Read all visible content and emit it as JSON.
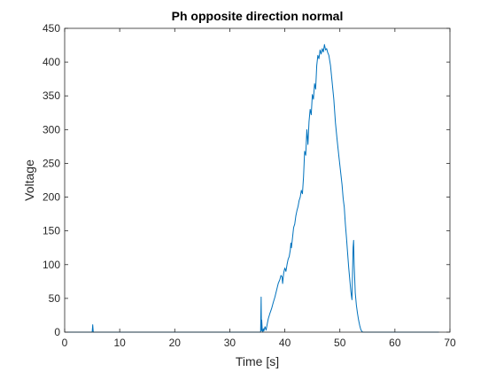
{
  "chart_data": {
    "type": "line",
    "title": "Ph opposite direction normal",
    "xlabel": "Time [s]",
    "ylabel": "Voltage",
    "xlim": [
      0,
      70
    ],
    "ylim": [
      0,
      450
    ],
    "xticks": [
      0,
      10,
      20,
      30,
      40,
      50,
      60,
      70
    ],
    "yticks": [
      0,
      50,
      100,
      150,
      200,
      250,
      300,
      350,
      400,
      450
    ],
    "grid": false,
    "box": true,
    "series": [
      {
        "color": "#0072BD",
        "x": [
          0,
          5.0,
          5.1,
          5.2,
          5.3,
          35.6,
          35.7,
          35.75,
          35.8,
          35.9,
          36.0,
          36.1,
          36.2,
          36.4,
          36.6,
          36.8,
          37.0,
          37.3,
          37.6,
          37.9,
          38.2,
          38.5,
          38.8,
          39.1,
          39.3,
          39.5,
          39.6,
          39.8,
          40.0,
          40.2,
          40.4,
          40.6,
          40.8,
          41.0,
          41.1,
          41.2,
          41.4,
          41.6,
          41.8,
          42.0,
          42.2,
          42.4,
          42.6,
          42.8,
          43.0,
          43.2,
          43.4,
          43.6,
          43.8,
          44.0,
          44.2,
          44.4,
          44.6,
          44.8,
          45.0,
          45.2,
          45.4,
          45.6,
          45.8,
          46.0,
          46.2,
          46.4,
          46.6,
          46.8,
          47.0,
          47.2,
          47.4,
          47.6,
          47.8,
          48.0,
          48.3,
          48.6,
          48.9,
          49.2,
          49.5,
          49.8,
          50.1,
          50.4,
          50.6,
          50.8,
          51.0,
          51.2,
          51.4,
          51.6,
          51.8,
          52.0,
          52.2,
          52.4,
          52.5,
          52.6,
          52.8,
          53.0,
          53.2,
          53.4,
          53.6,
          53.8,
          54.0,
          54.2,
          54.4,
          54.7,
          55.0,
          56.0,
          60.0,
          68.0
        ],
        "y": [
          0,
          0,
          11,
          0,
          0,
          0,
          52,
          2,
          18,
          4,
          0,
          5,
          2,
          8,
          3,
          12,
          20,
          28,
          35,
          44,
          52,
          62,
          72,
          78,
          84,
          82,
          72,
          88,
          95,
          90,
          100,
          108,
          112,
          122,
          132,
          125,
          140,
          155,
          160,
          172,
          180,
          186,
          195,
          200,
          210,
          205,
          230,
          268,
          262,
          300,
          278,
          312,
          330,
          322,
          352,
          345,
          368,
          360,
          395,
          410,
          405,
          418,
          412,
          420,
          415,
          426,
          418,
          420,
          414,
          410,
          395,
          370,
          345,
          310,
          285,
          262,
          240,
          218,
          198,
          185,
          160,
          140,
          118,
          96,
          78,
          60,
          48,
          125,
          136,
          100,
          58,
          40,
          28,
          18,
          10,
          4,
          1,
          0,
          0,
          0,
          0,
          0,
          0,
          0
        ]
      }
    ]
  }
}
